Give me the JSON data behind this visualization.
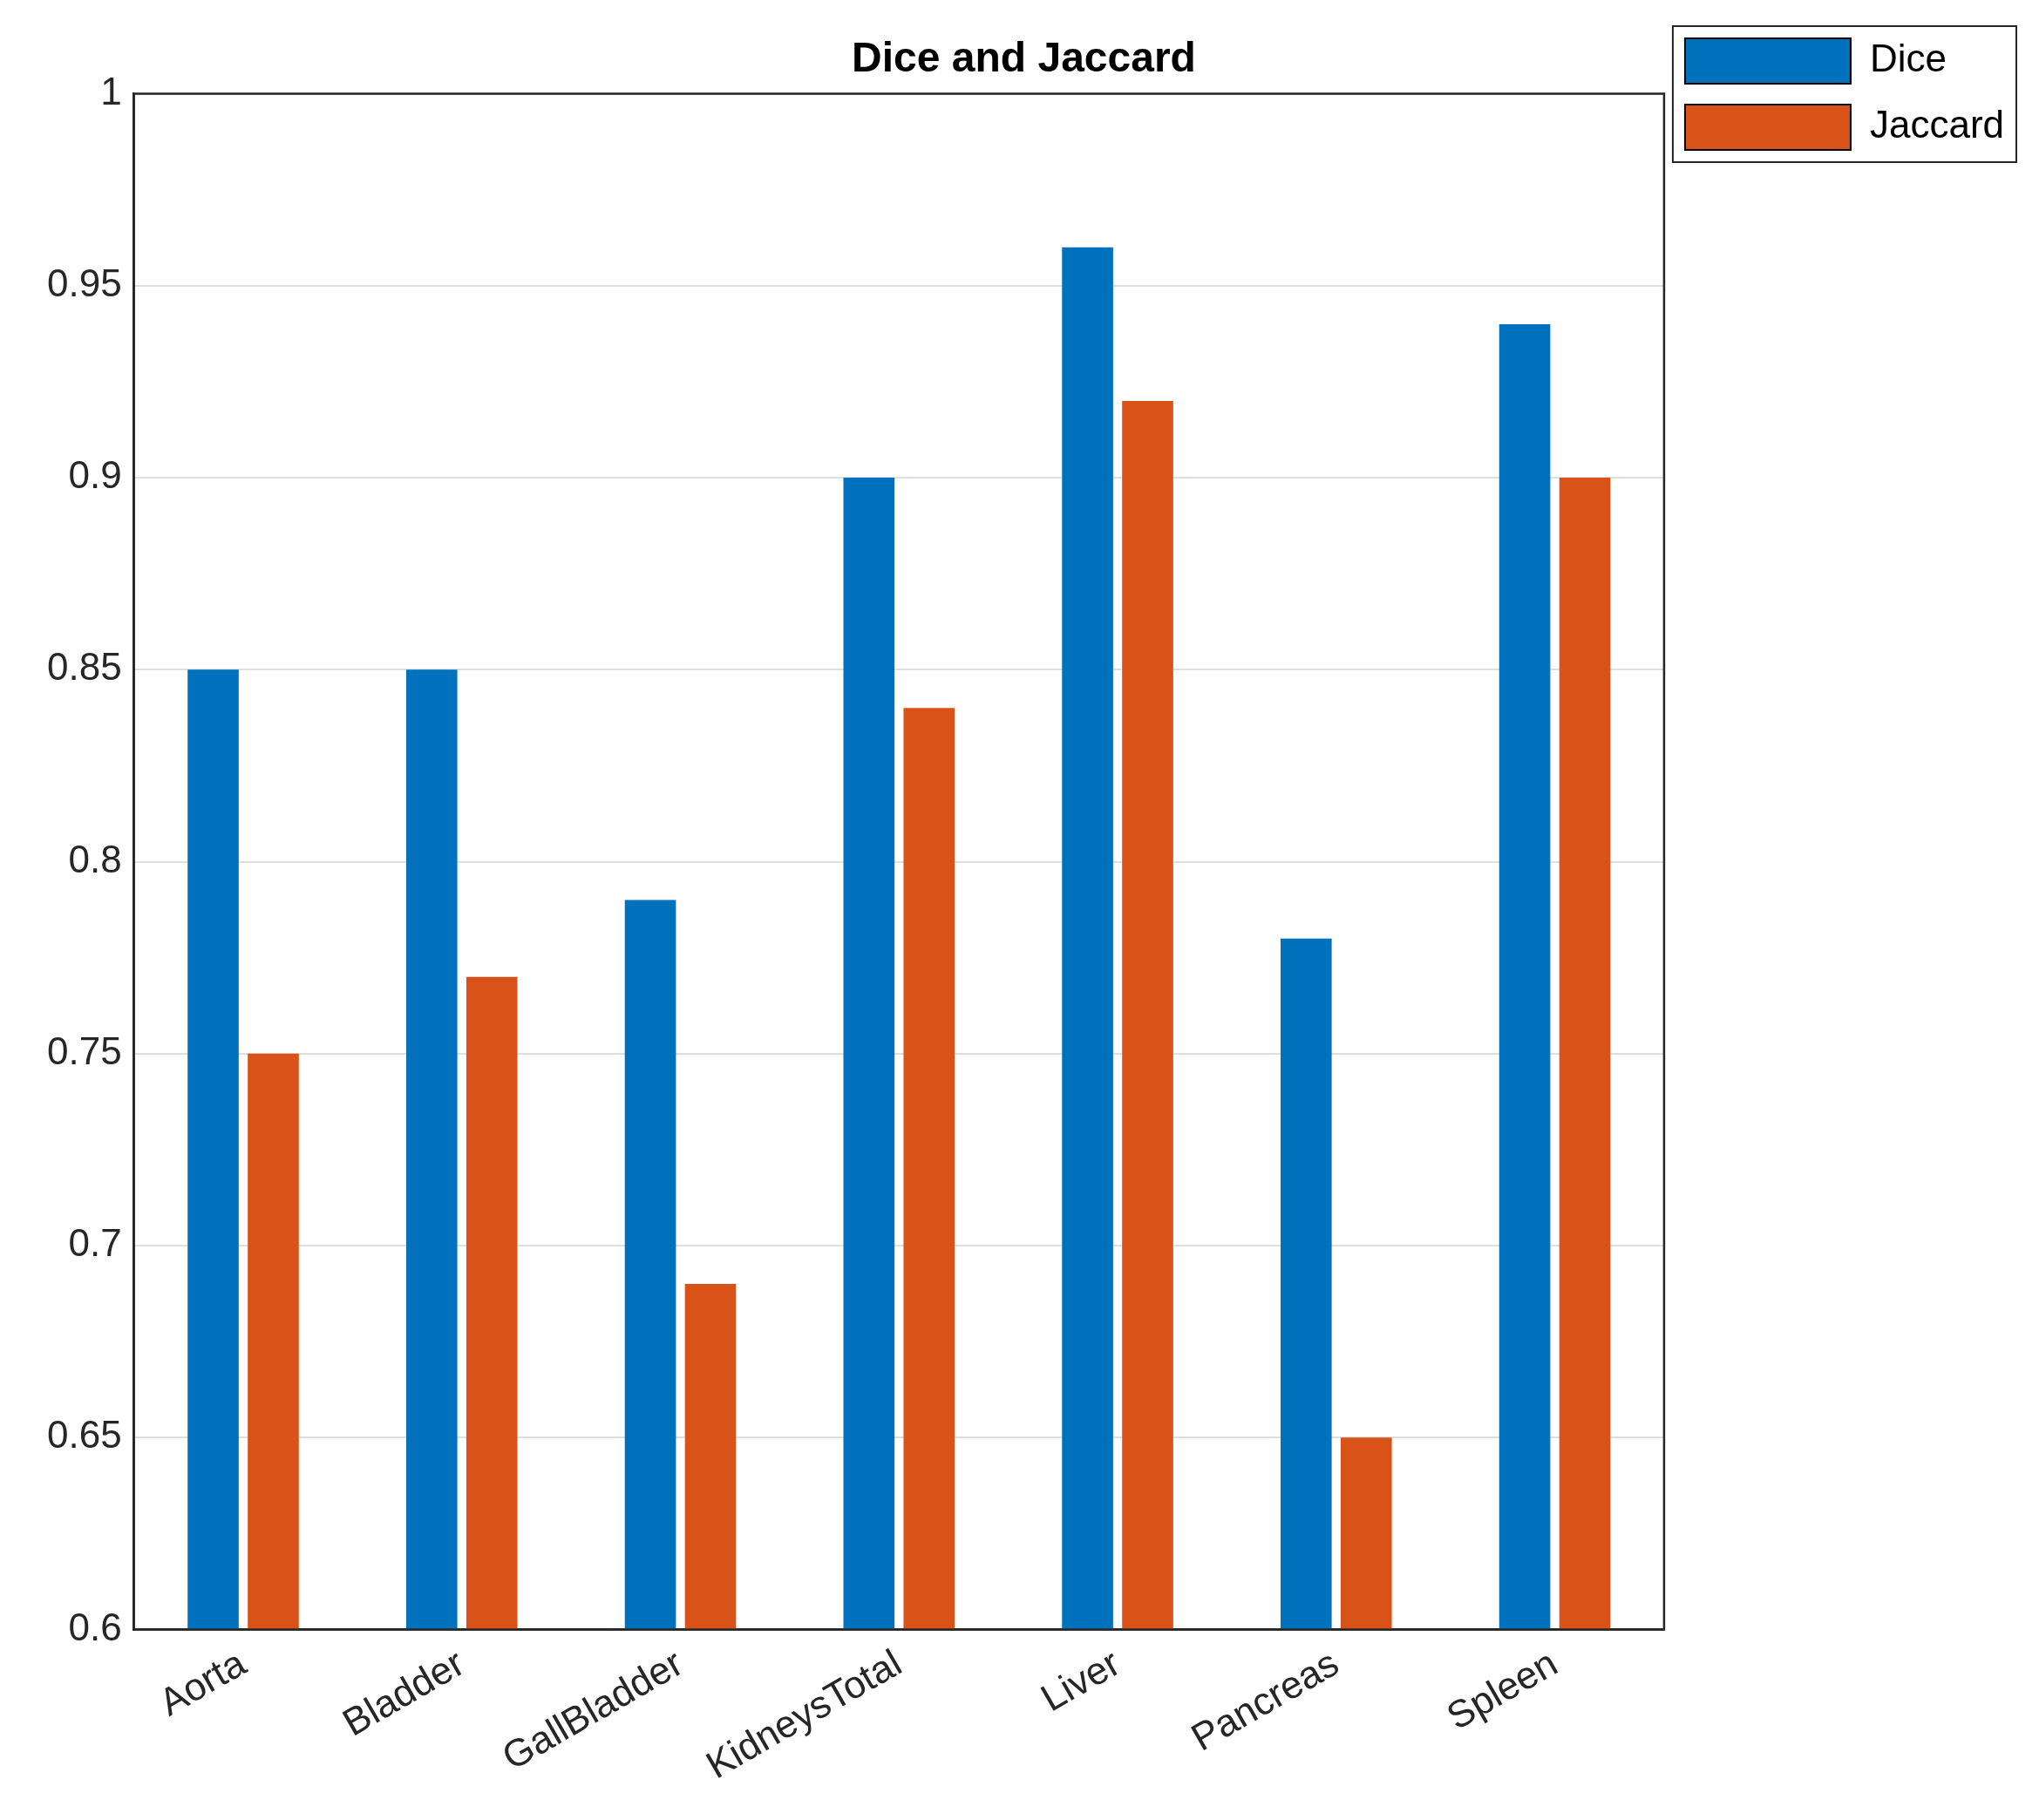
{
  "chart_data": {
    "type": "bar",
    "title": "Dice and Jaccard",
    "categories": [
      "Aorta",
      "Bladder",
      "GallBladder",
      "KidneysTotal",
      "Liver",
      "Pancreas",
      "Spleen"
    ],
    "series": [
      {
        "name": "Dice",
        "color": "#0072bd",
        "values": [
          0.85,
          0.85,
          0.79,
          0.9,
          0.96,
          0.78,
          0.94
        ]
      },
      {
        "name": "Jaccard",
        "color": "#d95319",
        "values": [
          0.75,
          0.77,
          0.69,
          0.84,
          0.92,
          0.65,
          0.9
        ]
      }
    ],
    "ylim": [
      0.6,
      1
    ],
    "yticks": [
      0.6,
      0.65,
      0.7,
      0.75,
      0.8,
      0.85,
      0.9,
      0.95,
      1
    ],
    "grid": "y",
    "legend": "top right"
  }
}
